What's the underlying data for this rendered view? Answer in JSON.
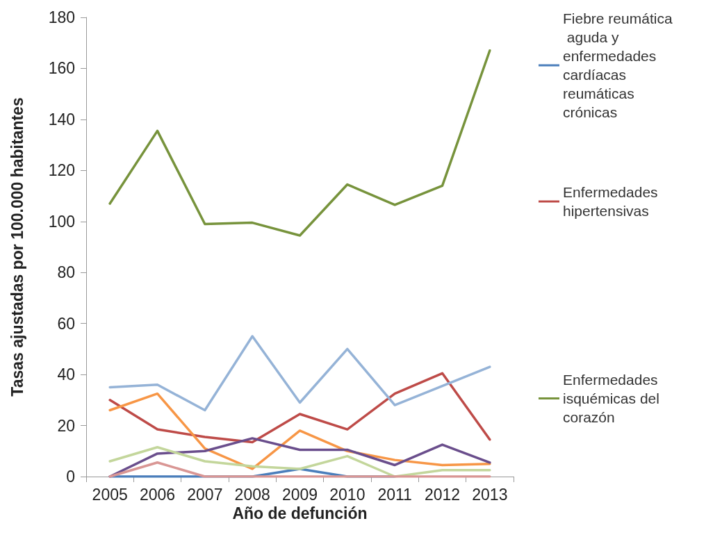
{
  "chart_data": {
    "type": "line",
    "xlabel": "Año de defunción",
    "ylabel": "Tasas ajustadas por 100.000 habitantes",
    "categories": [
      "2005",
      "2006",
      "2007",
      "2008",
      "2009",
      "2010",
      "2011",
      "2012",
      "2013"
    ],
    "ylim": [
      0,
      180
    ],
    "yticks": [
      0,
      20,
      40,
      60,
      80,
      100,
      120,
      140,
      160,
      180
    ],
    "grid": false,
    "legend": "right",
    "marker": "none",
    "line_style": "solid",
    "series": [
      {
        "name": "Fiebre reumática aguda y enfermedades cardíacas reumáticas crónicas",
        "color": "#4a7ebb",
        "values": [
          0,
          0,
          0,
          0,
          3,
          0,
          0,
          null,
          null
        ]
      },
      {
        "name": "Enfermedades hipertensivas",
        "color": "#be4b48",
        "values": [
          30,
          18.5,
          15.5,
          13.5,
          24.5,
          18.5,
          32.5,
          40.5,
          14.5
        ]
      },
      {
        "name": "Enfermedades isquémicas del corazón",
        "color": "#77933c",
        "values": [
          107,
          135.5,
          99,
          99.5,
          94.5,
          114.5,
          106.5,
          114,
          167
        ]
      },
      {
        "color": "#95b3d7",
        "values": [
          35,
          36,
          26,
          55,
          29,
          50,
          28,
          35.5,
          43
        ]
      },
      {
        "color": "#f79646",
        "values": [
          26,
          32.5,
          11,
          3,
          18,
          10,
          6.5,
          4.5,
          5
        ]
      },
      {
        "color": "#6a4e8c",
        "values": [
          0,
          9,
          10,
          15,
          10.5,
          10.5,
          4.5,
          12.5,
          5.5
        ]
      },
      {
        "color": "#c3d69b",
        "values": [
          6,
          11.5,
          6,
          4,
          3,
          8,
          0,
          2.5,
          2.5
        ]
      },
      {
        "color": "#d99694",
        "values": [
          0,
          5.5,
          0,
          0,
          0,
          0,
          0,
          0,
          0
        ]
      }
    ]
  }
}
